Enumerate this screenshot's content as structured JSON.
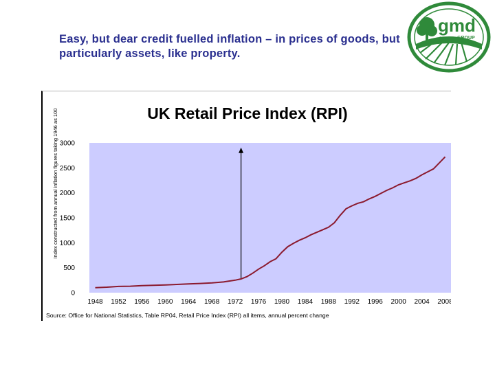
{
  "slide": {
    "headline": "Easy, but dear credit fuelled inflation – in prices of goods, but particularly assets, like property.",
    "logo_text": "gmd",
    "logo_subtext": "GROUP"
  },
  "colors": {
    "headline": "#2a2f8f",
    "plot_bg": "#ccccff",
    "line": "#8b1a2e",
    "logo_green": "#2f8a3a"
  },
  "chart_data": {
    "type": "line",
    "title": "UK Retail Price Index (RPI)",
    "ylabel": "Index constructed from annual inflation figures taking 1946 as 100",
    "source": "Source: Office for National Statistics, Table RP04, Retail Price Index (RPI) all items, annual percent change",
    "xlim": [
      1947,
      2009
    ],
    "ylim": [
      0,
      3000
    ],
    "x_ticks": [
      "1948",
      "1952",
      "1956",
      "1960",
      "1964",
      "1968",
      "1972",
      "1976",
      "1980",
      "1984",
      "1988",
      "1992",
      "1996",
      "2000",
      "2004",
      "2008"
    ],
    "y_ticks": [
      "0",
      "500",
      "1000",
      "1500",
      "2000",
      "2500",
      "3000"
    ],
    "grid": false,
    "annotation": "upward arrow at 1973",
    "series": [
      {
        "x": [
          1948,
          1950,
          1952,
          1954,
          1956,
          1958,
          1960,
          1962,
          1964,
          1966,
          1968,
          1970,
          1972,
          1973,
          1974,
          1975,
          1976,
          1977,
          1978,
          1979,
          1980,
          1981,
          1982,
          1983,
          1984,
          1985,
          1986,
          1987,
          1988,
          1989,
          1990,
          1991,
          1992,
          1993,
          1994,
          1995,
          1996,
          1997,
          1998,
          1999,
          2000,
          2001,
          2002,
          2003,
          2004,
          2005,
          2006,
          2007,
          2008
        ],
        "values": [
          100,
          110,
          125,
          130,
          140,
          148,
          155,
          165,
          175,
          185,
          195,
          215,
          250,
          275,
          320,
          390,
          470,
          540,
          620,
          680,
          810,
          920,
          990,
          1050,
          1100,
          1160,
          1210,
          1260,
          1310,
          1400,
          1550,
          1680,
          1740,
          1790,
          1820,
          1880,
          1930,
          1990,
          2050,
          2100,
          2160,
          2200,
          2240,
          2290,
          2360,
          2420,
          2480,
          2600,
          2720
        ]
      }
    ]
  }
}
